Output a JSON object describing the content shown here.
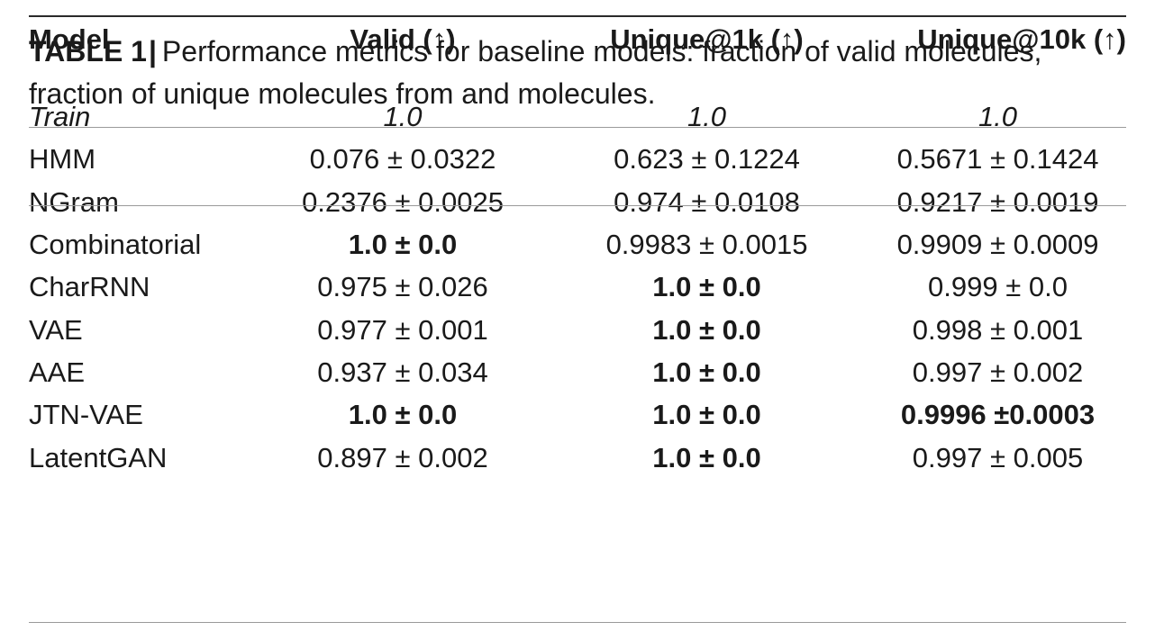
{
  "caption": {
    "label": "TABLE 1",
    "separator": "|",
    "text": "Performance metrics for baseline models: fraction of valid molecules, fraction of unique molecules from and molecules."
  },
  "table": {
    "headers": [
      "Model",
      "Valid (↑)",
      "Unique@1k (↑)",
      "Unique@10k (↑)"
    ],
    "rows": [
      {
        "model": "Train",
        "valid": "1.0",
        "unique1k": "1.0",
        "unique10k": "1.0",
        "italic": true,
        "bold": [
          false,
          false,
          false
        ]
      },
      {
        "model": "HMM",
        "valid": "0.076 ± 0.0322",
        "unique1k": "0.623 ± 0.1224",
        "unique10k": "0.5671 ± 0.1424",
        "bold": [
          false,
          false,
          false
        ]
      },
      {
        "model": "NGram",
        "valid": "0.2376 ± 0.0025",
        "unique1k": "0.974 ± 0.0108",
        "unique10k": "0.9217 ± 0.0019",
        "bold": [
          false,
          false,
          false
        ]
      },
      {
        "model": "Combinatorial",
        "valid": "1.0 ± 0.0",
        "unique1k": "0.9983 ± 0.0015",
        "unique10k": "0.9909 ± 0.0009",
        "bold": [
          true,
          false,
          false
        ]
      },
      {
        "model": "CharRNN",
        "valid": "0.975 ± 0.026",
        "unique1k": "1.0 ± 0.0",
        "unique10k": "0.999 ± 0.0",
        "bold": [
          false,
          true,
          false
        ]
      },
      {
        "model": "VAE",
        "valid": "0.977 ± 0.001",
        "unique1k": "1.0 ± 0.0",
        "unique10k": "0.998 ± 0.001",
        "bold": [
          false,
          true,
          false
        ]
      },
      {
        "model": "AAE",
        "valid": "0.937 ± 0.034",
        "unique1k": "1.0 ± 0.0",
        "unique10k": "0.997 ± 0.002",
        "bold": [
          false,
          true,
          false
        ]
      },
      {
        "model": "JTN-VAE",
        "valid": "1.0 ± 0.0",
        "unique1k": "1.0 ± 0.0",
        "unique10k": "0.9996 ±0.0003",
        "bold": [
          true,
          true,
          true
        ]
      },
      {
        "model": "LatentGAN",
        "valid": "0.897 ± 0.002",
        "unique1k": "1.0 ± 0.0",
        "unique10k": "0.997 ± 0.005",
        "bold": [
          false,
          true,
          false
        ]
      }
    ]
  }
}
